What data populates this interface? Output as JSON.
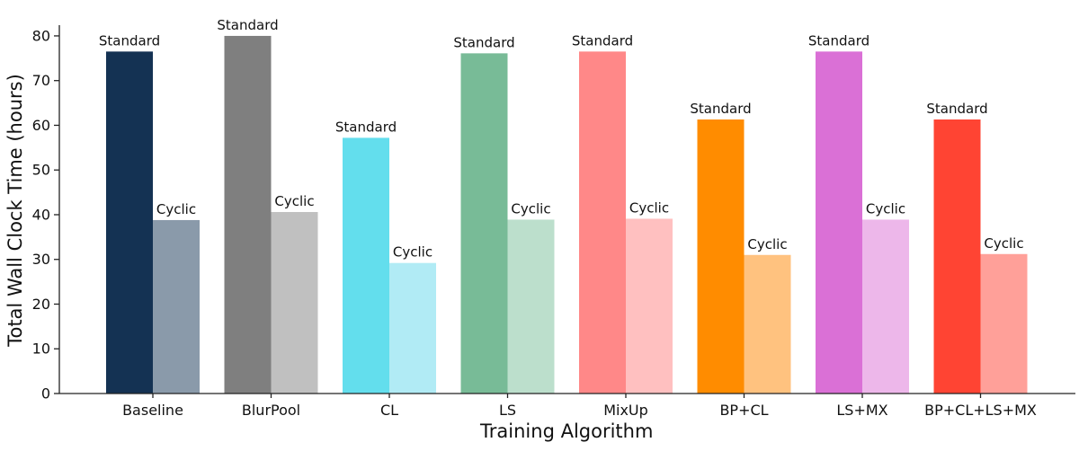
{
  "chart_data": {
    "type": "bar",
    "xlabel": "Training Algorithm",
    "ylabel": "Total Wall Clock Time (hours)",
    "ylim": [
      0,
      82
    ],
    "yticks": [
      0,
      10,
      20,
      30,
      40,
      50,
      60,
      70,
      80
    ],
    "grid": false,
    "categories": [
      "Baseline",
      "BlurPool",
      "CL",
      "LS",
      "MixUp",
      "BP+CL",
      "LS+MX",
      "BP+CL+LS+MX"
    ],
    "series": [
      {
        "name": "Standard",
        "values": [
          76.5,
          80.0,
          57.2,
          76.1,
          76.5,
          61.3,
          76.5,
          61.3
        ],
        "colors": [
          "#143253",
          "#7f7f7f",
          "#63deed",
          "#78bb97",
          "#ff8888",
          "#ff8c00",
          "#da70d6",
          "#ff4433"
        ]
      },
      {
        "name": "Cyclic",
        "values": [
          38.8,
          40.6,
          29.2,
          38.9,
          39.1,
          31.0,
          38.9,
          31.2
        ],
        "colors": [
          "#8a9aaa",
          "#c0c0c0",
          "#b1ebf5",
          "#bcdfcc",
          "#ffc0c0",
          "#ffc27f",
          "#edb7ea",
          "#ffa099"
        ]
      }
    ]
  }
}
